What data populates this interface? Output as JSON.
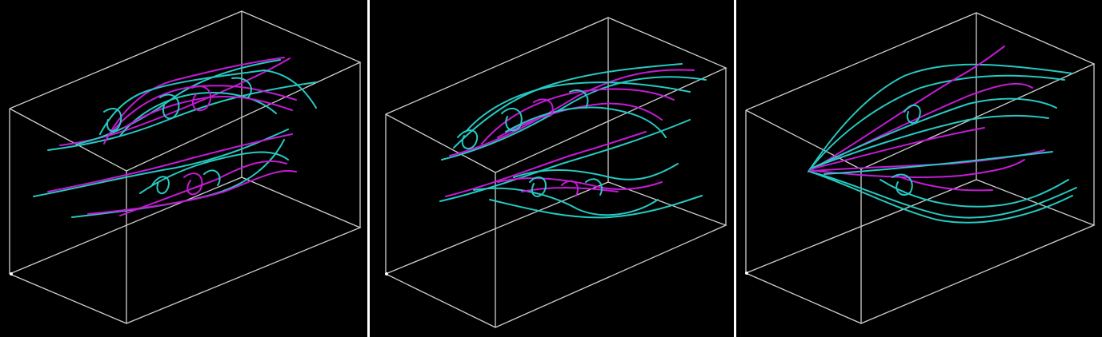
{
  "panels": [
    {
      "name": "streamline-panel-1",
      "colors": {
        "primary": "#27c9c2",
        "secondary": "#c41bd4",
        "box": "#cfcfcf",
        "background": "#000000"
      }
    },
    {
      "name": "streamline-panel-2",
      "colors": {
        "primary": "#27c9c2",
        "secondary": "#c41bd4",
        "box": "#cfcfcf",
        "background": "#000000"
      }
    },
    {
      "name": "streamline-panel-3",
      "colors": {
        "primary": "#27c9c2",
        "secondary": "#c41bd4",
        "box": "#cfcfcf",
        "background": "#000000"
      }
    }
  ]
}
